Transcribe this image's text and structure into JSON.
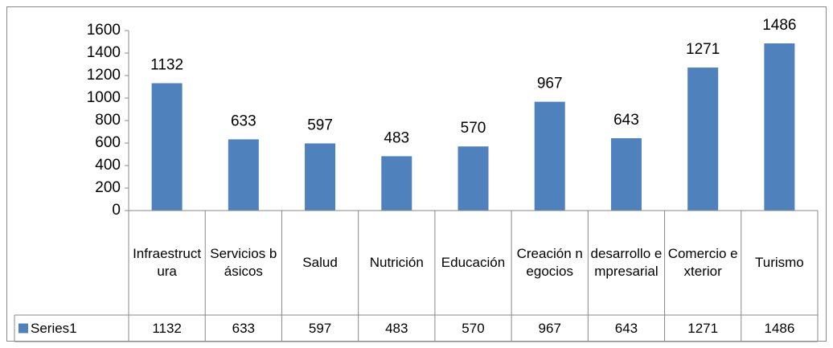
{
  "chart_data": {
    "type": "bar",
    "categories": [
      "Infraestructura",
      "Servicios básicos",
      "Salud",
      "Nutrición",
      "Educación",
      "Creación negocios",
      "desarrollo empresarial",
      "Comercio exterior",
      "Turismo"
    ],
    "series": [
      {
        "name": "Series1",
        "color": "#4f81bd",
        "values": [
          1132,
          633,
          597,
          483,
          570,
          967,
          643,
          1271,
          1486
        ]
      }
    ],
    "ylim": [
      0,
      1600
    ],
    "yticks": [
      0,
      200,
      400,
      600,
      800,
      1000,
      1200,
      1400,
      1600
    ],
    "data_table": true,
    "grid": false
  }
}
